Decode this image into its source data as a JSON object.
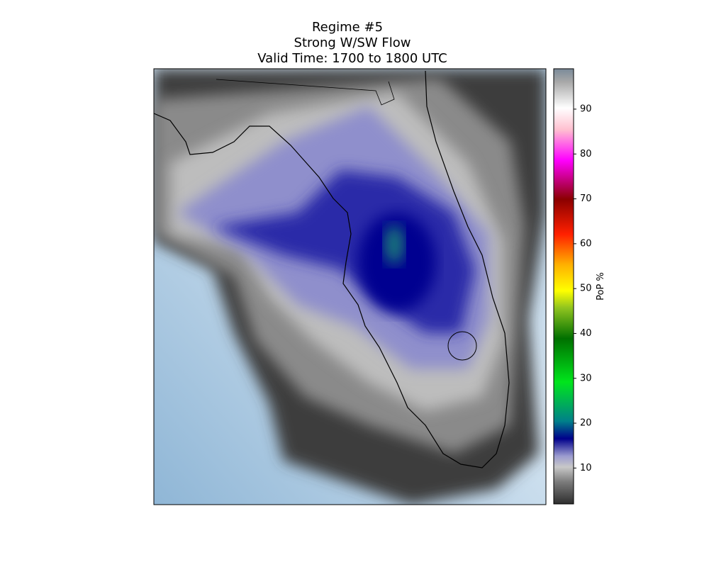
{
  "title": {
    "lines": [
      "Regime #5",
      "Strong W/SW Flow",
      "Valid Time: 1700 to 1800 UTC"
    ]
  },
  "colorbar": {
    "label": "PoP %",
    "lim": [
      2,
      99
    ],
    "ticks": [
      10,
      20,
      30,
      40,
      50,
      60,
      70,
      80,
      90
    ]
  }
}
